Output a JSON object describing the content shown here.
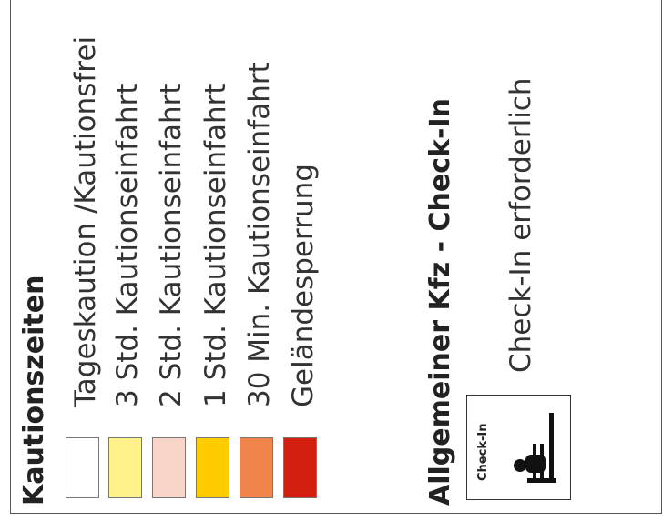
{
  "kaution": {
    "title": "Kautionszeiten",
    "items": [
      {
        "label": "Tageskaution /Kautionsfrei",
        "color": "#ffffff"
      },
      {
        "label": "3 Std. Kautionseinfahrt",
        "color": "#fff28a"
      },
      {
        "label": "2 Std. Kautionseinfahrt",
        "color": "#f9d4c8"
      },
      {
        "label": "1 Std. Kautionseinfahrt",
        "color": "#ffcc00"
      },
      {
        "label": "30 Min. Kautionseinfahrt",
        "color": "#f0844a"
      },
      {
        "label": "Geländesperrung",
        "color": "#d31f0f"
      }
    ]
  },
  "checkin": {
    "title": "Allgemeiner Kfz - Check-In",
    "subtitle": "Check-In erforderlich",
    "icon_label": "Check-In",
    "icon": "person-at-desk-icon"
  }
}
